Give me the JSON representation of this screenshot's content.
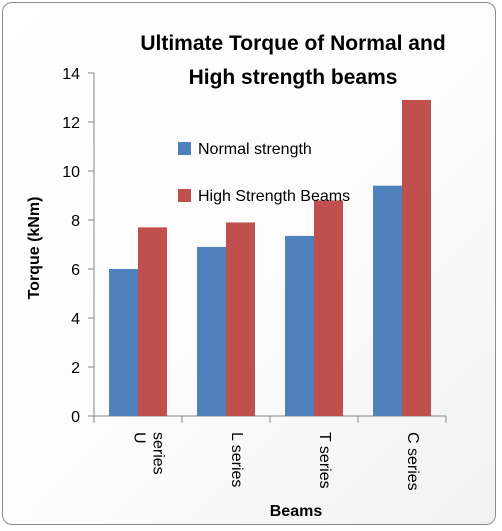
{
  "chart_data": {
    "type": "bar",
    "title_lines": [
      "Ultimate Torque of Normal and",
      "High strength  beams"
    ],
    "xlabel": "Beams",
    "ylabel": "Torque (kNm)",
    "categories": [
      [
        "U",
        "series"
      ],
      [
        "L series"
      ],
      [
        "T series"
      ],
      [
        "C series"
      ]
    ],
    "series": [
      {
        "name": "Normal strength",
        "color": "#4f81bd",
        "values": [
          6.0,
          6.9,
          7.35,
          9.4
        ]
      },
      {
        "name": "High Strength Beams",
        "color": "#c0504d",
        "values": [
          7.7,
          7.9,
          8.8,
          12.9
        ]
      }
    ],
    "ylim": [
      0,
      14
    ],
    "yticks": [
      0,
      2,
      4,
      6,
      8,
      10,
      12,
      14
    ],
    "grid": false,
    "legend_position": "inside-top-left"
  }
}
